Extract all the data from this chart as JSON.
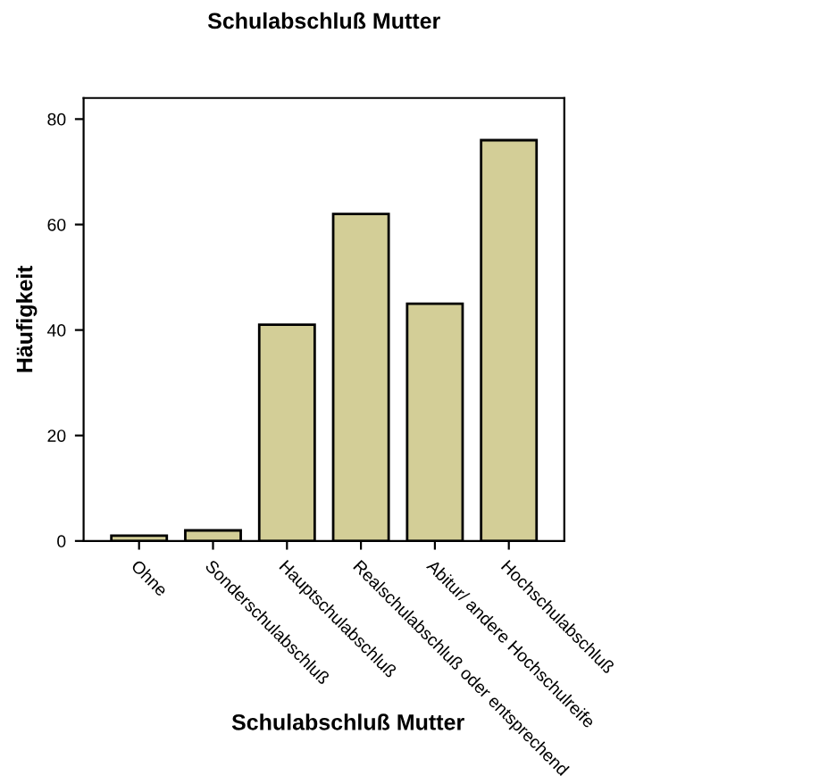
{
  "chart_data": {
    "type": "bar",
    "title": "Schulabschluß Mutter",
    "xlabel": "Schulabschluß Mutter",
    "ylabel": "Häufigkeit",
    "categories": [
      "Ohne",
      "Sonderschulabschluß",
      "Hauptschulabschluß",
      "Realschulabschluß oder entsprechend",
      "Abitur/ andere Hochschulreife",
      "Hochschulabschluß"
    ],
    "values": [
      1,
      2,
      41,
      62,
      45,
      76
    ],
    "color": "#d3ce97",
    "ylim": [
      0,
      84
    ],
    "yticks": [
      0,
      20,
      40,
      60,
      80
    ],
    "grid": false,
    "legend": false
  }
}
